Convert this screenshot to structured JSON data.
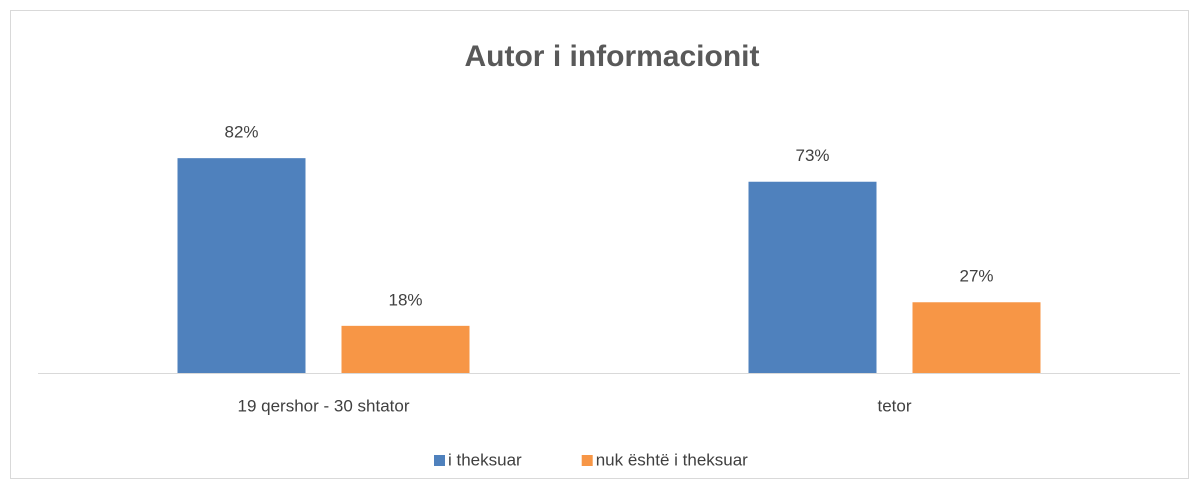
{
  "chart_data": {
    "type": "bar",
    "title": "Autor i informacionit",
    "categories": [
      "19 qershor - 30 shtator",
      "tetor"
    ],
    "series": [
      {
        "name": "i theksuar",
        "color": "#4f81bd",
        "values": [
          82,
          73
        ],
        "value_labels": [
          "82%",
          "73%"
        ]
      },
      {
        "name": "nuk është i theksuar",
        "color": "#f79646",
        "values": [
          18,
          27
        ],
        "value_labels": [
          "18%",
          "27%"
        ]
      }
    ],
    "legend": "bottom"
  }
}
